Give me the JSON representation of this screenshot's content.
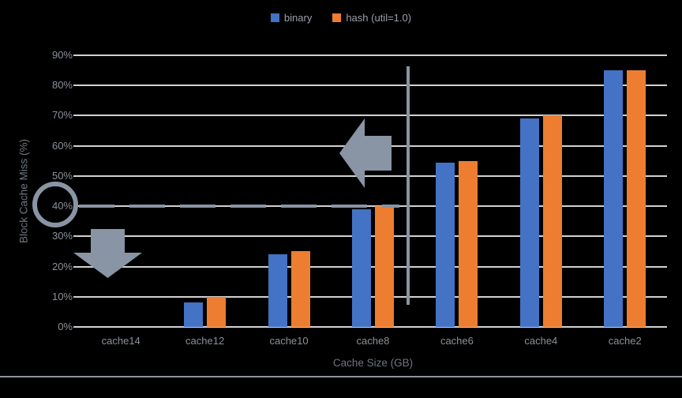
{
  "chart_data": {
    "type": "bar",
    "title": "",
    "categories": [
      "cache14",
      "cache12",
      "cache10",
      "cache8",
      "cache6",
      "cache4",
      "cache2"
    ],
    "series": [
      {
        "name": "binary",
        "color": "#4472C4",
        "values": [
          0,
          8,
          24,
          39,
          54.5,
          69,
          85
        ]
      },
      {
        "name": "hash (util=1.0)",
        "color": "#ED7D31",
        "values": [
          0,
          10,
          25,
          40,
          55,
          70,
          85
        ]
      }
    ],
    "xlabel": "Cache Size (GB)",
    "ylabel": "Block Cache Miss (%)",
    "ylim": [
      0,
      90
    ],
    "ytick_step": 10,
    "ytick_labels": [
      "0%",
      "10%",
      "20%",
      "30%",
      "40%",
      "50%",
      "60%",
      "70%",
      "80%",
      "90%"
    ],
    "grid": true,
    "legend_position": "top-center",
    "annotations": {
      "dashed_reference_line_value": 40,
      "circled_ytick_label": "40%",
      "left_block_arrow": "gray block arrow pointing left above cache8 bars",
      "down_block_arrow": "gray block arrow pointing down left of cache12 bars",
      "vertical_divider_line": "gray vertical line between cache8 and cache6 groups",
      "annotation_color": "#8994a4"
    }
  },
  "legend": {
    "items": [
      {
        "label": "binary",
        "color": "#4472C4"
      },
      {
        "label": "hash (util=1.0)",
        "color": "#ED7D31"
      }
    ]
  },
  "colors": {
    "background": "#000000",
    "gridline": "#d2d2d2",
    "tick_text": "#8b9199",
    "axis_title_text": "#70757c",
    "legend_text": "#9aa0a8"
  }
}
